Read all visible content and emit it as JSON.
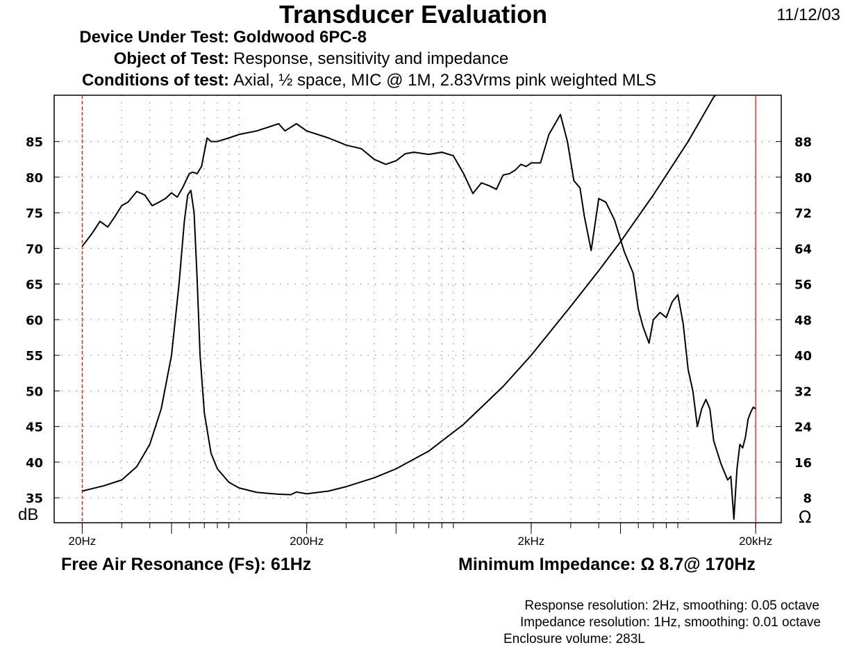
{
  "header": {
    "title": "Transducer Evaluation",
    "date": "11/12/03",
    "device_label": "Device Under Test:",
    "device_value": "Goldwood 6PC-8",
    "object_label": "Object of Test:",
    "object_value": "Response, sensitivity and impedance",
    "conditions_label": "Conditions of test:",
    "conditions_value": "Axial, ½ space, MIC @ 1M, 2.83Vrms pink weighted MLS"
  },
  "footer": {
    "fs_label": "Free Air Resonance (Fs): 61Hz",
    "min_imp_label": "Minimum Impedance: Ω 8.7@ 170Hz",
    "response_res": "Response resolution: 2Hz, smoothing: 0.05 octave",
    "impedance_res": "Impedance resolution: 1Hz, smoothing: 0.01 octave",
    "enclosure": "Enclosure volume: 283L"
  },
  "colors": {
    "trace": "#000000",
    "marker": "#ff0000",
    "grid": "#808080"
  },
  "chart_data": {
    "type": "line",
    "title": "Transducer Evaluation",
    "xscale": "log",
    "xlim": [
      15,
      26000
    ],
    "x_ticks": [
      {
        "value": 20,
        "label": "20Hz"
      },
      {
        "value": 200,
        "label": "200Hz"
      },
      {
        "value": 2000,
        "label": "2kHz"
      },
      {
        "value": 20000,
        "label": "20kHz"
      }
    ],
    "y_left": {
      "label": "dB",
      "lim": [
        31.5,
        91.5
      ],
      "ticks": [
        35,
        40,
        45,
        50,
        55,
        60,
        65,
        70,
        75,
        80,
        85
      ]
    },
    "y_right": {
      "label": "Ω",
      "lim": [
        2.4,
        98.4
      ],
      "ticks": [
        8,
        16,
        24,
        32,
        40,
        48,
        56,
        64,
        72,
        80,
        88
      ]
    },
    "grid": true,
    "markers_hz": [
      20,
      20000
    ],
    "series": [
      {
        "name": "",
        "axis": "left",
        "unit": "dB",
        "x": [
          20,
          22,
          24,
          26,
          28,
          30,
          32,
          35,
          38,
          41,
          44,
          47,
          50,
          53,
          56,
          60,
          62,
          65,
          68,
          72,
          75,
          80,
          90,
          100,
          120,
          150,
          160,
          180,
          200,
          250,
          300,
          350,
          400,
          450,
          500,
          550,
          600,
          700,
          800,
          900,
          1000,
          1100,
          1200,
          1300,
          1400,
          1500,
          1600,
          1700,
          1800,
          1900,
          2000,
          2200,
          2400,
          2700,
          2900,
          3100,
          3300,
          3450,
          3700,
          4000,
          4300,
          4700,
          5200,
          5700,
          6000,
          6300,
          6700,
          7000,
          7500,
          8000,
          8500,
          9000,
          9500,
          10000,
          10500,
          11000,
          11500,
          12000,
          12500,
          13000,
          14000,
          15000,
          15500,
          16000,
          16500,
          17000,
          17500,
          18000,
          18500,
          19000,
          19500,
          20000
        ],
        "values": [
          70.3,
          72.0,
          73.8,
          73.0,
          74.5,
          76.0,
          76.5,
          78.0,
          77.5,
          76.0,
          76.5,
          77.0,
          77.8,
          77.2,
          78.5,
          80.5,
          80.7,
          80.5,
          81.5,
          85.5,
          85.0,
          85.0,
          85.5,
          86.0,
          86.5,
          87.5,
          86.5,
          87.5,
          86.5,
          85.5,
          84.5,
          84.0,
          82.5,
          81.8,
          82.3,
          83.3,
          83.5,
          83.2,
          83.5,
          83.0,
          80.5,
          77.7,
          79.2,
          78.8,
          78.3,
          80.3,
          80.5,
          81.0,
          81.8,
          81.5,
          82.0,
          82.0,
          86.0,
          88.8,
          85.0,
          79.5,
          78.5,
          74.5,
          69.7,
          77.0,
          76.5,
          74.0,
          69.5,
          66.5,
          61.5,
          59.0,
          56.7,
          60.0,
          61.0,
          60.3,
          62.5,
          63.5,
          59.5,
          53.0,
          50.0,
          45.0,
          47.5,
          48.8,
          47.5,
          43.0,
          39.8,
          37.5,
          38.0,
          32.0,
          39.0,
          42.5,
          42.0,
          43.5,
          46.0,
          47.0,
          47.7,
          47.5
        ]
      },
      {
        "name": "",
        "axis": "right",
        "unit": "Ω",
        "x": [
          20,
          25,
          30,
          35,
          40,
          45,
          50,
          54,
          57,
          59,
          61,
          63,
          65,
          67,
          70,
          75,
          80,
          90,
          100,
          120,
          150,
          170,
          180,
          200,
          250,
          300,
          400,
          500,
          700,
          1000,
          1500,
          2000,
          3000,
          4000,
          5000,
          7000,
          10000,
          13000,
          15000,
          16000
        ],
        "values": [
          9.5,
          10.7,
          12.0,
          15.0,
          20.0,
          28.0,
          40.0,
          56.0,
          70.0,
          76.0,
          77.0,
          72.0,
          57.0,
          40.0,
          27.0,
          18.0,
          14.5,
          11.5,
          10.2,
          9.2,
          8.8,
          8.7,
          9.3,
          8.9,
          9.5,
          10.5,
          12.5,
          14.5,
          18.5,
          24.5,
          33.0,
          40.0,
          51.0,
          59.0,
          65.5,
          76.0,
          88.0,
          98.0,
          101.0,
          105.0
        ]
      }
    ]
  }
}
